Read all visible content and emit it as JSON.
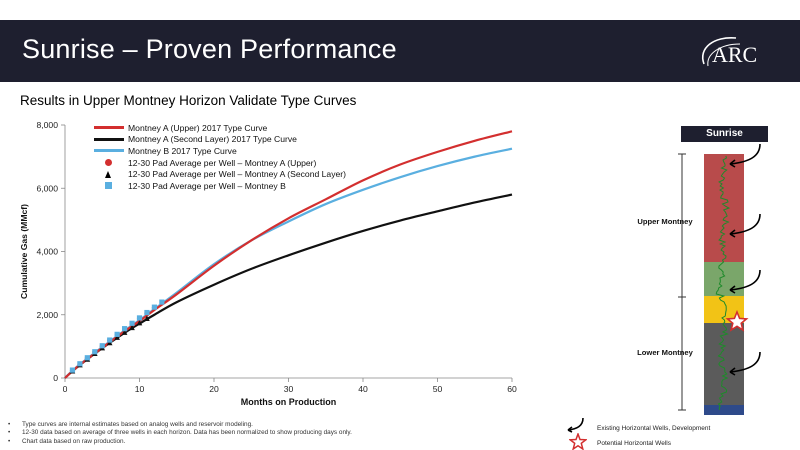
{
  "header": {
    "title": "Sunrise – Proven Performance",
    "logo_text": "ARC",
    "colors": {
      "bar": "#1e1f2f",
      "text": "#ffffff"
    }
  },
  "subtitle": "Results in Upper Montney Horizon Validate Type Curves",
  "chart_data": {
    "type": "line",
    "title": "",
    "xlabel": "Months on Production",
    "ylabel": "Cumulative Gas (MMcf)",
    "xlim": [
      0,
      60
    ],
    "ylim": [
      0,
      8000
    ],
    "x_ticks": [
      "0",
      "10",
      "20",
      "30",
      "40",
      "50",
      "60"
    ],
    "y_ticks": [
      "0",
      "2,000",
      "4,000",
      "6,000",
      "8,000"
    ],
    "grid": false,
    "legend_position": "top-left",
    "series": [
      {
        "name": "Montney A (Upper) 2017 Type Curve",
        "kind": "line",
        "color": "#d32f2f",
        "x": [
          0,
          1,
          2,
          4,
          6,
          8,
          10,
          12,
          15,
          20,
          25,
          30,
          35,
          40,
          45,
          50,
          55,
          60
        ],
        "y": [
          0,
          220,
          420,
          780,
          1130,
          1480,
          1800,
          2150,
          2650,
          3550,
          4350,
          5050,
          5650,
          6250,
          6750,
          7150,
          7500,
          7800
        ]
      },
      {
        "name": "Montney A (Second Layer) 2017 Type Curve",
        "kind": "line",
        "color": "#111111",
        "x": [
          0,
          1,
          2,
          4,
          6,
          8,
          10,
          12,
          15,
          20,
          25,
          30,
          35,
          40,
          45,
          50,
          55,
          60
        ],
        "y": [
          0,
          220,
          410,
          770,
          1110,
          1430,
          1720,
          2000,
          2400,
          2950,
          3450,
          3880,
          4280,
          4650,
          4980,
          5270,
          5550,
          5800
        ]
      },
      {
        "name": "Montney B 2017 Type Curve",
        "kind": "line",
        "color": "#5aafe0",
        "x": [
          0,
          1,
          2,
          4,
          6,
          8,
          10,
          12,
          15,
          20,
          25,
          30,
          35,
          40,
          45,
          50,
          55,
          60
        ],
        "y": [
          0,
          230,
          430,
          800,
          1150,
          1500,
          1830,
          2180,
          2700,
          3600,
          4350,
          4950,
          5500,
          5950,
          6350,
          6700,
          7000,
          7250
        ]
      },
      {
        "name": "12-30 Pad Average per Well – Montney A (Upper)",
        "kind": "marker",
        "marker": "circle",
        "color": "#d32f2f",
        "x": [
          1,
          2,
          3,
          4,
          5,
          6,
          7,
          8,
          9,
          10,
          11,
          12
        ],
        "y": [
          240,
          430,
          630,
          820,
          1000,
          1190,
          1370,
          1540,
          1710,
          1880,
          2050,
          2220
        ]
      },
      {
        "name": "12-30 Pad Average per Well – Montney A (Second Layer)",
        "kind": "marker",
        "marker": "triangle",
        "color": "#111111",
        "x": [
          1,
          2,
          3,
          4,
          5,
          6,
          7,
          8,
          9,
          10,
          11
        ],
        "y": [
          220,
          410,
          590,
          770,
          950,
          1110,
          1280,
          1440,
          1590,
          1740,
          1880
        ]
      },
      {
        "name": "12-30 Pad Average per Well – Montney B",
        "kind": "marker",
        "marker": "square",
        "color": "#5aafe0",
        "x": [
          1,
          2,
          3,
          4,
          5,
          6,
          7,
          8,
          9,
          10,
          11,
          12,
          13
        ],
        "y": [
          250,
          450,
          640,
          830,
          1020,
          1200,
          1380,
          1560,
          1730,
          1900,
          2070,
          2240,
          2400
        ]
      }
    ]
  },
  "footnotes": [
    "Type curves are internal estimates based on analog wells and reservoir modeling.",
    "12-30 data based on average of three wells in each horizon. Data has been normalized to show producing days only.",
    "Chart data based on raw production."
  ],
  "stratigraphy": {
    "title": "Sunrise",
    "zones": [
      {
        "label": "Upper\nMontney",
        "color": "#b84b4b"
      },
      {
        "label": "",
        "color": "#7aa66a"
      },
      {
        "label": "",
        "color": "#f2c316"
      },
      {
        "label": "Lower\nMontney",
        "color": "#5b5b5b"
      },
      {
        "label": "",
        "color": "#2e4a8a"
      }
    ],
    "upper_label": "Upper Montney",
    "lower_label": "Lower Montney"
  },
  "key": {
    "existing_wells": "Existing Horizontal Wells, Development",
    "potential_wells": "Potential Horizontal Wells"
  }
}
